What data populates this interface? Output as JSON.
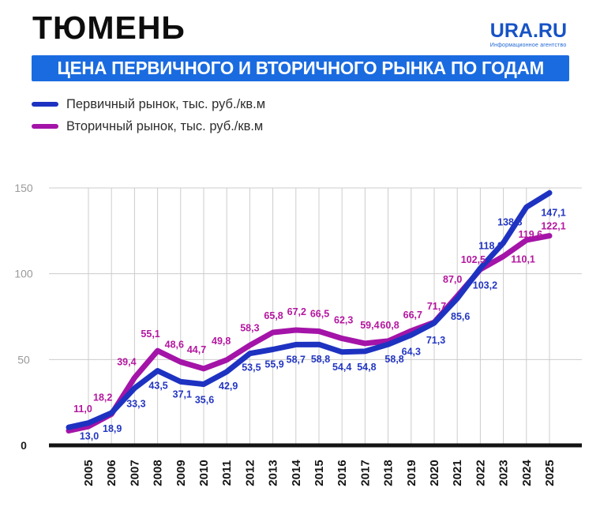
{
  "header": {
    "title": "ТЮМЕНЬ",
    "banner": "ЦЕНА ПЕРВИЧНОГО И ВТОРИЧНОГО РЫНКА ПО ГОДАМ",
    "banner_color": "#1a6be0",
    "logo": {
      "name": "URA.RU",
      "tagline": "Информационное агентство"
    }
  },
  "legend": [
    {
      "label": "Первичный рынок, тыс. руб./кв.м",
      "color": "#1e32c1"
    },
    {
      "label": "Вторичный рынок, тыс. руб./кв.м",
      "color": "#a414a8"
    }
  ],
  "chart_data": {
    "type": "line",
    "title": "ЦЕНА ПЕРВИЧНОГО И ВТОРИЧНОГО РЫНКА ПО ГОДАМ",
    "x": [
      "2005",
      "2006",
      "2007",
      "2008",
      "2009",
      "2010",
      "2011",
      "2012",
      "2013",
      "2014",
      "2015",
      "2016",
      "2017",
      "2018",
      "2019",
      "2020",
      "2021",
      "2022",
      "2023",
      "2024",
      "2025"
    ],
    "series": [
      {
        "id": "primary-market",
        "name": "Первичный рынок, тыс. руб./кв.м",
        "color": "#1e32c1",
        "label_color": "#2336c2",
        "values": [
          13.0,
          18.9,
          33.3,
          43.5,
          37.1,
          35.6,
          42.9,
          53.5,
          55.9,
          58.7,
          58.8,
          54.4,
          54.8,
          58.8,
          64.3,
          71.3,
          85.6,
          103.2,
          118.0,
          138.8,
          147.1
        ],
        "label_offsets": [
          [
            1,
            17
          ],
          [
            1,
            20
          ],
          [
            2,
            20
          ],
          [
            1,
            19
          ],
          [
            2,
            16
          ],
          [
            1,
            20
          ],
          [
            2,
            18
          ],
          [
            2,
            18
          ],
          [
            2,
            19
          ],
          [
            0,
            19
          ],
          [
            2,
            19
          ],
          [
            0,
            19
          ],
          [
            2,
            20
          ],
          [
            8,
            19
          ],
          [
            0,
            21
          ],
          [
            2,
            22
          ],
          [
            4,
            23
          ],
          [
            6,
            22
          ],
          [
            -16,
            4
          ],
          [
            -21,
            19
          ],
          [
            5,
            25
          ]
        ]
      },
      {
        "id": "secondary-market",
        "name": "Вторичный рынок, тыс. руб./кв.м",
        "color": "#a414a8",
        "label_color": "#b4169f",
        "values": [
          11.0,
          18.2,
          39.4,
          55.1,
          48.6,
          44.7,
          49.8,
          58.3,
          65.8,
          67.2,
          66.5,
          62.3,
          59.4,
          60.8,
          66.7,
          71.7,
          87.0,
          102.5,
          110.1,
          119.6,
          122.1
        ],
        "label_offsets": [
          [
            -7,
            -22
          ],
          [
            -11,
            -21
          ],
          [
            -10,
            -20
          ],
          [
            -9,
            -21
          ],
          [
            -8,
            -22
          ],
          [
            -9,
            -24
          ],
          [
            -7,
            -24
          ],
          [
            0,
            -22
          ],
          [
            1,
            -21
          ],
          [
            1,
            -23
          ],
          [
            1,
            -22
          ],
          [
            2,
            -23
          ],
          [
            6,
            -23
          ],
          [
            2,
            -20
          ],
          [
            2,
            -20
          ],
          [
            3,
            -20
          ],
          [
            -6,
            -21
          ],
          [
            -9,
            -12
          ],
          [
            25,
            4
          ],
          [
            5,
            -7
          ],
          [
            5,
            -12
          ]
        ]
      }
    ],
    "xlabel": "",
    "ylabel": "",
    "ylim": [
      0,
      150
    ],
    "yticks": [
      0,
      50,
      100,
      150
    ],
    "grid": true,
    "legend_position": "top-left",
    "decimal_separator": ","
  }
}
